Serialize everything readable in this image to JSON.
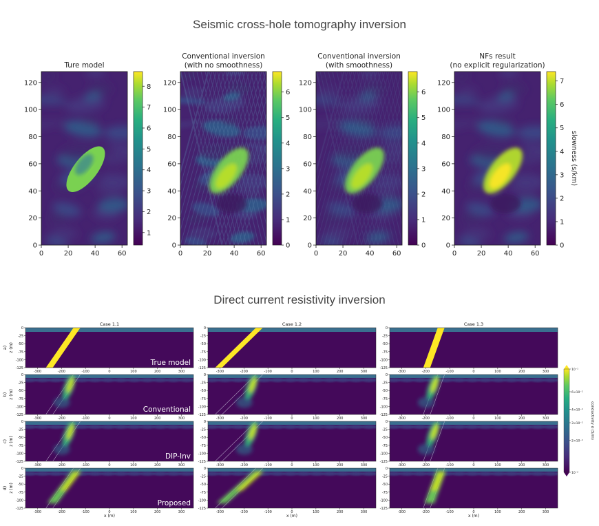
{
  "section1_title": "Seismic cross-hole tomography inversion",
  "section2_title": "Direct current resistivity inversion",
  "seismic": {
    "panels": [
      {
        "title": [
          "Ture model"
        ],
        "cbar_ticks": [
          "8",
          "7",
          "6",
          "5",
          "4",
          "3",
          "2",
          "1"
        ],
        "cbar_max": 8.7,
        "cbar_min": 0.4
      },
      {
        "title": [
          "Conventional inversion",
          "(with no smoothness)"
        ],
        "cbar_ticks": [
          "6",
          "5",
          "4",
          "3",
          "2",
          "1",
          "0"
        ],
        "cbar_max": 6.8,
        "cbar_min": 0
      },
      {
        "title": [
          "Conventional inversion",
          "(with smoothness)"
        ],
        "cbar_ticks": [
          "6",
          "5",
          "4",
          "3",
          "2",
          "1",
          "0"
        ],
        "cbar_max": 6.8,
        "cbar_min": 0
      },
      {
        "title": [
          "NFs result",
          "(no explicit regularization)"
        ],
        "cbar_ticks": [
          "7",
          "6",
          "5",
          "4",
          "3",
          "2",
          "1",
          "0"
        ],
        "cbar_max": 7.4,
        "cbar_min": 0,
        "cbar_label": "slowness (s/km)"
      }
    ],
    "y_ticks": [
      "120",
      "100",
      "80",
      "60",
      "40",
      "20",
      "0"
    ],
    "x_ticks": [
      "0",
      "20",
      "40",
      "60"
    ]
  },
  "dc": {
    "cases": [
      "Case 1.1",
      "Case 1.2",
      "Case 1.3"
    ],
    "rows": [
      {
        "label": "a)",
        "overlay": "True model"
      },
      {
        "label": "b)",
        "overlay": "Conventional"
      },
      {
        "label": "c)",
        "overlay": "DIP-Inv"
      },
      {
        "label": "d)",
        "overlay": "Proposed"
      }
    ],
    "z_ticks": [
      "0",
      "-25",
      "-50",
      "-75",
      "-100",
      "-125"
    ],
    "x_ticks": [
      "-300",
      "-200",
      "-100",
      "0",
      "100",
      "200",
      "300"
    ],
    "ylabel": "z (m)",
    "xlabel": "x (m)",
    "cbar_ticks": [
      "10⁻¹",
      "6×10⁻²",
      "4×10⁻²",
      "3×10⁻²",
      "2×10⁻²",
      "10⁻²"
    ],
    "cbar_label": "conductivity σ (S/m)"
  }
}
